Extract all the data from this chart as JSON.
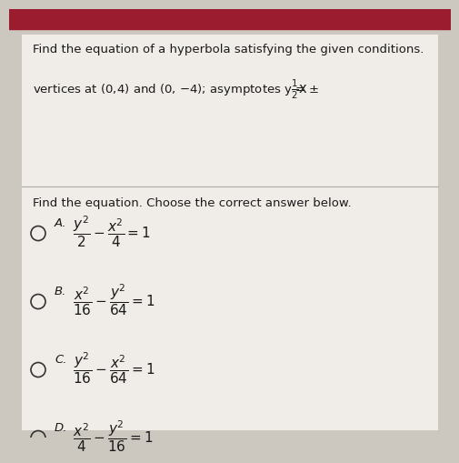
{
  "bg_color": "#ccc8c0",
  "top_bar_color": "#9b1c2e",
  "card_color": "#f0ede8",
  "header_text": "Find the equation of a hyperbola satisfying the given conditions.",
  "question_text": "Find the equation. Choose the correct answer below.",
  "options": [
    {
      "label": "A.",
      "eq": "$\\frac{y^2}{2} - \\frac{x^2}{4} = 1$"
    },
    {
      "label": "B.",
      "eq": "$\\frac{x^2}{16} - \\frac{y^2}{64} = 1$"
    },
    {
      "label": "C.",
      "eq": "$\\frac{y^2}{16} - \\frac{x^2}{64} = 1$"
    },
    {
      "label": "D.",
      "eq": "$\\frac{x^2}{4} - \\frac{y^2}{16} = 1$"
    }
  ],
  "text_color": "#1a1a1a",
  "divider_color": "#aaaaaa",
  "circle_color": "#333333",
  "font_size_header": 9.5,
  "font_size_body": 9.5,
  "font_size_eq": 11,
  "font_size_label": 9.5
}
